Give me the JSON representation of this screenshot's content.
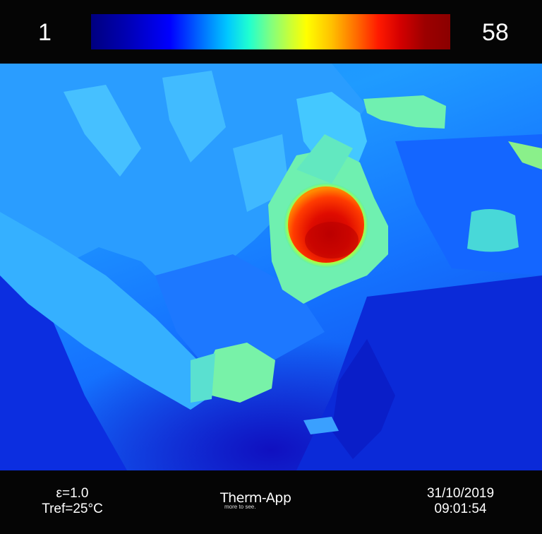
{
  "scale": {
    "min": "1",
    "max": "58",
    "colormap": "jet",
    "gradient_colors": [
      "#00007f",
      "#0000ff",
      "#00c8ff",
      "#80ff80",
      "#ffff00",
      "#ff6a00",
      "#d40000",
      "#8b0000"
    ]
  },
  "image": {
    "palette": {
      "background": "#1574ff",
      "cool": "#0e3ee6",
      "clothing": "#3fb6ff",
      "skin": "#6ff0b0",
      "hot": "#ff2a00",
      "hottest": "#c00000"
    }
  },
  "info": {
    "emissivity": "ε=1.0",
    "tref": "Tref=25°C",
    "date": "31/10/2019",
    "time": "09:01:54"
  },
  "brand": {
    "name": "Therm-App",
    "tagline": "more to see."
  }
}
